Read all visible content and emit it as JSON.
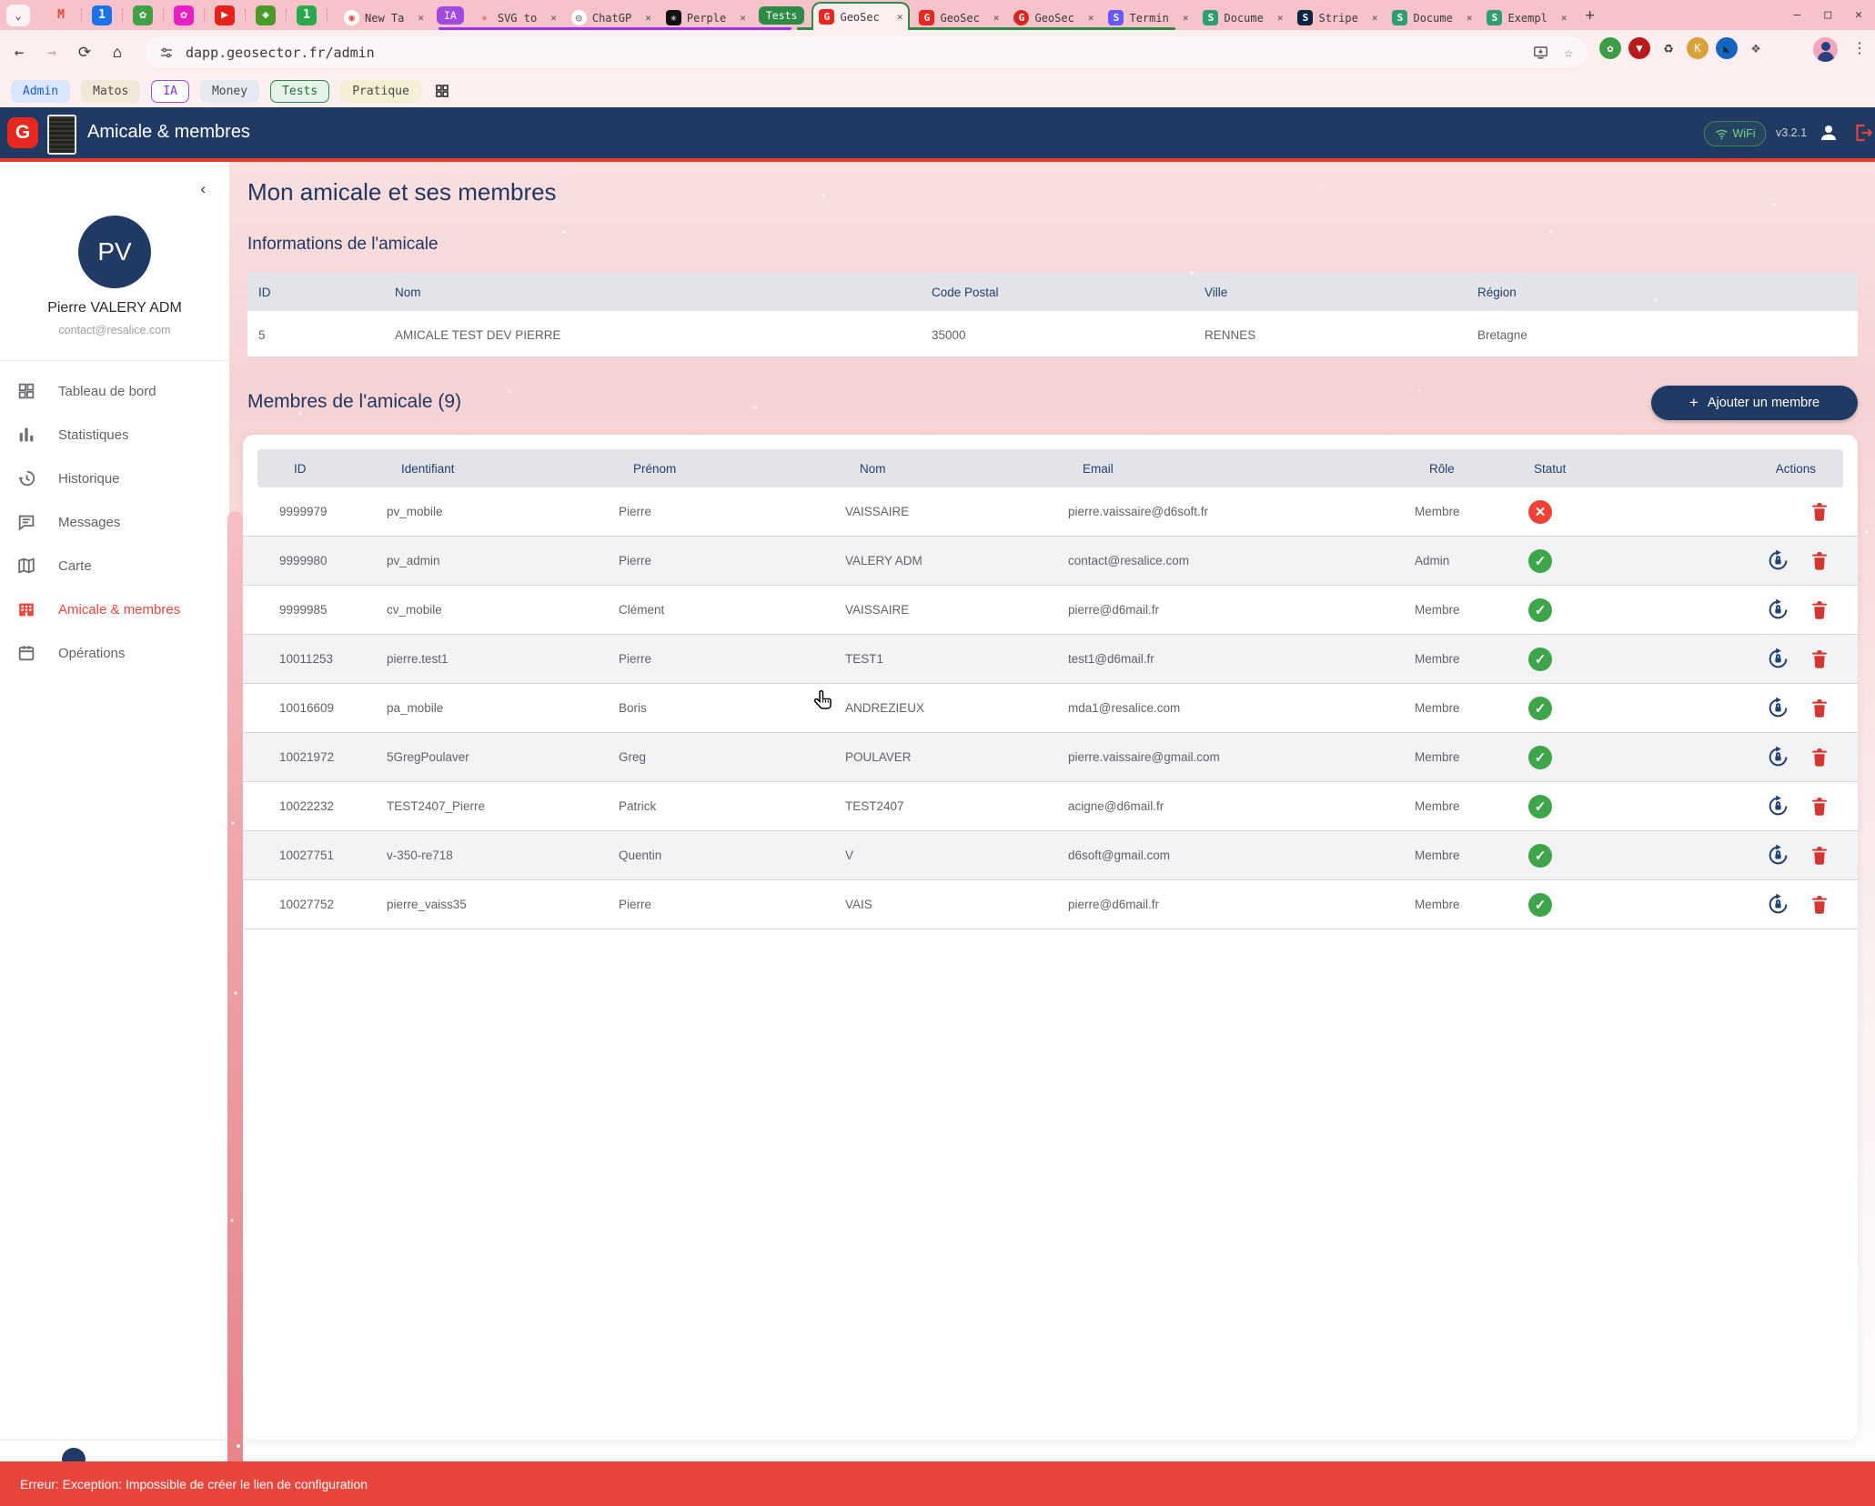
{
  "theme": {
    "navy": "#213a63",
    "red_accent": "#e8453c",
    "green_ok": "#3fa54a",
    "header_underline": "#e8392f"
  },
  "browser": {
    "url": "dapp.geosector.fr/admin",
    "window_controls": {
      "minimize": "–",
      "maximize": "□",
      "close": "✕"
    },
    "new_tab_label": "+",
    "pinned": [
      {
        "name": "gmail-icon",
        "glyph": "M",
        "color": "#ea4335",
        "bg": "transparent"
      },
      {
        "name": "calendar-icon",
        "glyph": "1",
        "color": "#fff",
        "bg": "#1a73e8"
      },
      {
        "name": "nature-badge-icon",
        "glyph": "✿",
        "color": "#fff",
        "bg": "#43a047"
      },
      {
        "name": "photos-pink-icon",
        "glyph": "✿",
        "color": "#fff",
        "bg": "#e91ec4"
      },
      {
        "name": "youtube-icon",
        "glyph": "▶",
        "color": "#fff",
        "bg": "#e62117"
      },
      {
        "name": "qgis-map-icon",
        "glyph": "◈",
        "color": "#fff",
        "bg": "#4c9a2a"
      },
      {
        "name": "badge-one-icon",
        "glyph": "1",
        "color": "#fff",
        "bg": "#2ba84a"
      }
    ],
    "tab_items": [
      {
        "type": "tab",
        "label": "New Ta",
        "fav_glyph": "◉",
        "fav_bg": "#fff",
        "fav_color": "#e8453c",
        "fav_shape": "circle"
      },
      {
        "type": "chip",
        "label": "IA",
        "color": "#a24ae0"
      },
      {
        "type": "tab",
        "label": "SVG to",
        "fav_glyph": "✳",
        "fav_bg": "transparent",
        "fav_color": "#e0493f",
        "fav_shape": "square"
      },
      {
        "type": "tab",
        "label": "ChatGP",
        "fav_glyph": "◎",
        "fav_bg": "#fff",
        "fav_color": "#666",
        "fav_shape": "circle"
      },
      {
        "type": "tab",
        "label": "Perple",
        "fav_glyph": "✳",
        "fav_bg": "#111",
        "fav_color": "#fff",
        "fav_shape": "square"
      },
      {
        "type": "chip",
        "label": "Tests",
        "color": "#2e8b46"
      },
      {
        "type": "tab",
        "label": "GeoSec",
        "active": true,
        "fav_glyph": "G",
        "fav_bg": "#e8281e",
        "fav_color": "#fff",
        "fav_shape": "square"
      },
      {
        "type": "tab",
        "label": "GeoSec",
        "fav_glyph": "G",
        "fav_bg": "#e8281e",
        "fav_color": "#fff",
        "fav_shape": "square"
      },
      {
        "type": "tab",
        "label": "GeoSec",
        "fav_glyph": "G",
        "fav_bg": "#d8271d",
        "fav_color": "#fff",
        "fav_shape": "circle"
      },
      {
        "type": "tab",
        "label": "Termin",
        "fav_glyph": "S",
        "fav_bg": "#635bff",
        "fav_color": "#fff",
        "fav_shape": "square"
      },
      {
        "type": "tab",
        "label": "Docume",
        "fav_glyph": "S",
        "fav_bg": "#2f9e6e",
        "fav_color": "#fff",
        "fav_shape": "square"
      },
      {
        "type": "tab",
        "label": "Stripe",
        "fav_glyph": "S",
        "fav_bg": "#0a2540",
        "fav_color": "#fff",
        "fav_shape": "square"
      },
      {
        "type": "tab",
        "label": "Docume",
        "fav_glyph": "S",
        "fav_bg": "#2f9e6e",
        "fav_color": "#fff",
        "fav_shape": "square"
      },
      {
        "type": "tab",
        "label": "Exempl",
        "fav_glyph": "S",
        "fav_bg": "#2f9e6e",
        "fav_color": "#fff",
        "fav_shape": "square"
      }
    ],
    "close_glyph": "✕",
    "bookmarks": [
      {
        "label": "Admin",
        "bg": "#d9e6fb",
        "color": "#1f5dd1",
        "border": "transparent"
      },
      {
        "label": "Matos",
        "bg": "#f3e7d8",
        "color": "#4a4a4a",
        "border": "transparent"
      },
      {
        "label": "IA",
        "bg": "#ffffff",
        "color": "#8a2be2",
        "border": "#a24ae0"
      },
      {
        "label": "Money",
        "bg": "#e6e9f2",
        "color": "#4a4a4a",
        "border": "transparent"
      },
      {
        "label": "Tests",
        "bg": "#e6f3e8",
        "color": "#256d36",
        "border": "#2e8b46"
      },
      {
        "label": "Pratique",
        "bg": "#f5efd4",
        "color": "#4a4a4a",
        "border": "transparent"
      }
    ],
    "extensions": [
      {
        "name": "leaf-extension-icon",
        "glyph": "✿",
        "bg": "#3d9c46",
        "color": "#fff"
      },
      {
        "name": "shield-extension-icon",
        "glyph": "▼",
        "bg": "#b71c1c",
        "color": "#fff"
      },
      {
        "name": "recycle-extension-icon",
        "glyph": "♻",
        "bg": "transparent",
        "color": "#333"
      },
      {
        "name": "keeper-extension-icon",
        "glyph": "K",
        "bg": "#d9a23a",
        "color": "#fff"
      },
      {
        "name": "blue-extension-icon",
        "glyph": "◣",
        "bg": "#1565c0",
        "color": "#0d2a4a"
      },
      {
        "name": "puzzle-extension-icon",
        "glyph": "❖",
        "bg": "transparent",
        "color": "#5f6368"
      }
    ]
  },
  "app": {
    "header": {
      "title": "Amicale & membres",
      "logo_glyph": "G",
      "wifi_label": "WiFi",
      "version": "v3.2.1"
    },
    "sidebar": {
      "collapse_glyph": "‹",
      "avatar_initials": "PV",
      "user_name": "Pierre VALERY ADM",
      "user_email": "contact@resalice.com",
      "items": [
        {
          "label": "Tableau de bord",
          "icon": "grid",
          "active": false
        },
        {
          "label": "Statistiques",
          "icon": "stats",
          "active": false
        },
        {
          "label": "Historique",
          "icon": "history",
          "active": false
        },
        {
          "label": "Messages",
          "icon": "chat",
          "active": false
        },
        {
          "label": "Carte",
          "icon": "map",
          "active": false
        },
        {
          "label": "Amicale & membres",
          "icon": "building",
          "active": true
        },
        {
          "label": "Opérations",
          "icon": "calendar",
          "active": false
        }
      ]
    },
    "main": {
      "page_title": "Mon amicale et ses membres",
      "info_section": {
        "title": "Informations de l'amicale",
        "columns": [
          "ID",
          "Nom",
          "Code Postal",
          "Ville",
          "Région"
        ],
        "row": [
          "5",
          "AMICALE TEST DEV PIERRE",
          "35000",
          "RENNES",
          "Bretagne"
        ]
      },
      "members_section": {
        "title": "Membres de l'amicale (9)",
        "add_button_label": "Ajouter un membre",
        "add_button_plus": "+",
        "columns": [
          "ID",
          "Identifiant",
          "Prénom",
          "Nom",
          "Email",
          "Rôle",
          "Statut",
          "Actions"
        ],
        "rows": [
          {
            "id": "9999979",
            "identifiant": "pv_mobile",
            "prenom": "Pierre",
            "nom": "VAISSAIRE",
            "email": "pierre.vaissaire@d6soft.fr",
            "role": "Membre",
            "status": "error",
            "reset": false
          },
          {
            "id": "9999980",
            "identifiant": "pv_admin",
            "prenom": "Pierre",
            "nom": "VALERY ADM",
            "email": "contact@resalice.com",
            "role": "Admin",
            "status": "ok",
            "reset": true
          },
          {
            "id": "9999985",
            "identifiant": "cv_mobile",
            "prenom": "Clément",
            "nom": "VAISSAIRE",
            "email": "pierre@d6mail.fr",
            "role": "Membre",
            "status": "ok",
            "reset": true
          },
          {
            "id": "10011253",
            "identifiant": "pierre.test1",
            "prenom": "Pierre",
            "nom": "TEST1",
            "email": "test1@d6mail.fr",
            "role": "Membre",
            "status": "ok",
            "reset": true
          },
          {
            "id": "10016609",
            "identifiant": "pa_mobile",
            "prenom": "Boris",
            "nom": "ANDREZIEUX",
            "email": "mda1@resalice.com",
            "role": "Membre",
            "status": "ok",
            "reset": true
          },
          {
            "id": "10021972",
            "identifiant": "5GregPoulaver",
            "prenom": "Greg",
            "nom": "POULAVER",
            "email": "pierre.vaissaire@gmail.com",
            "role": "Membre",
            "status": "ok",
            "reset": true
          },
          {
            "id": "10022232",
            "identifiant": "TEST2407_Pierre",
            "prenom": "Patrick",
            "nom": "TEST2407",
            "email": "acigne@d6mail.fr",
            "role": "Membre",
            "status": "ok",
            "reset": true
          },
          {
            "id": "10027751",
            "identifiant": "v-350-re718",
            "prenom": "Quentin",
            "nom": "V",
            "email": "d6soft@gmail.com",
            "role": "Membre",
            "status": "ok",
            "reset": true
          },
          {
            "id": "10027752",
            "identifiant": "pierre_vaiss35",
            "prenom": "Pierre",
            "nom": "VAIS",
            "email": "pierre@d6mail.fr",
            "role": "Membre",
            "status": "ok",
            "reset": true
          }
        ],
        "status_glyphs": {
          "ok": "✓",
          "error": "✕"
        }
      }
    },
    "error_toast": "Erreur: Exception: Impossible de créer le lien de configuration"
  }
}
